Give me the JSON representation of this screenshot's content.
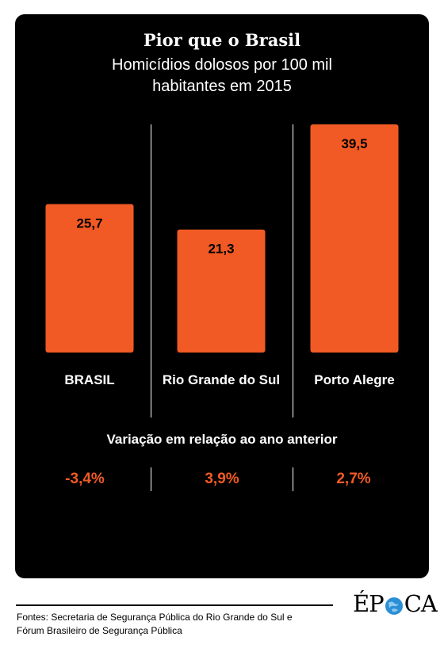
{
  "colors": {
    "background": "#000000",
    "bar": "#f15a24",
    "text": "#ffffff",
    "highlight": "#f15a24"
  },
  "header": {
    "title": "Pior que o Brasil",
    "subtitle_line1": "Homicídios dolosos por 100 mil",
    "subtitle_line2": "habitantes em 2015"
  },
  "chart_data": {
    "type": "bar",
    "title": "Pior que o Brasil",
    "subtitle": "Homicídios dolosos por 100 mil habitantes em 2015",
    "categories": [
      "BRASIL",
      "Rio Grande do Sul",
      "Porto Alegre"
    ],
    "values": [
      25.7,
      21.3,
      39.5
    ],
    "value_labels": [
      "25,7",
      "21,3",
      "39,5"
    ],
    "ylim": [
      0,
      39.5
    ],
    "grid": false,
    "legend": "none"
  },
  "variation": {
    "title": "Variação em relação ao ano anterior",
    "values": [
      "-3,4%",
      "3,9%",
      "2,7%"
    ]
  },
  "footer": {
    "source_line1": "Fontes: Secretaria de Segurança Pública do Rio Grande do Sul e",
    "source_line2": "Fórum Brasileiro de Segurança Pública",
    "logo": "ÉPOCA",
    "logo_left": "ÉP",
    "logo_right": "CA"
  }
}
